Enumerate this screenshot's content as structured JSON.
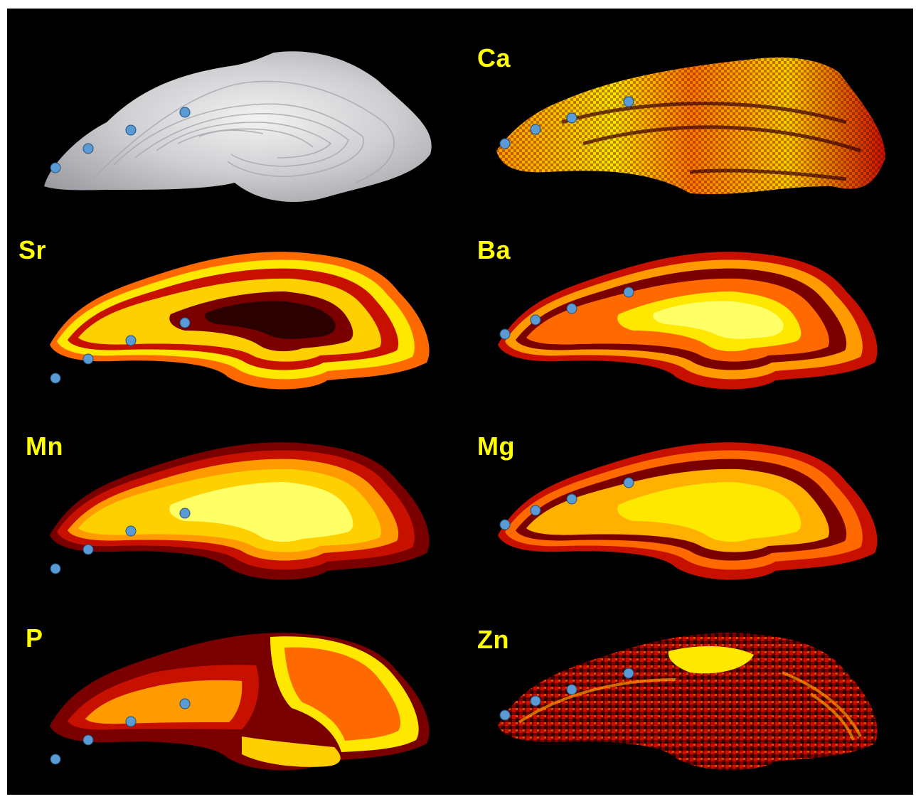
{
  "figure": {
    "background": "#000000",
    "label_color": "#ffff00",
    "marker_color": "#5b9bd5",
    "panels": [
      {
        "id": "photo",
        "label": "",
        "type": "photograph"
      },
      {
        "id": "ca",
        "label": "Ca",
        "type": "heatmap"
      },
      {
        "id": "sr",
        "label": "Sr",
        "type": "heatmap"
      },
      {
        "id": "ba",
        "label": "Ba",
        "type": "heatmap"
      },
      {
        "id": "mn",
        "label": "Mn",
        "type": "heatmap"
      },
      {
        "id": "mg",
        "label": "Mg",
        "type": "heatmap"
      },
      {
        "id": "p",
        "label": "P",
        "type": "heatmap"
      },
      {
        "id": "zn",
        "label": "Zn",
        "type": "heatmap"
      }
    ],
    "colormap": [
      "#2a0000",
      "#7a0000",
      "#c81000",
      "#ff4a00",
      "#ff9a00",
      "#ffe800",
      "#ffff99"
    ],
    "markers_per_panel": 4
  }
}
